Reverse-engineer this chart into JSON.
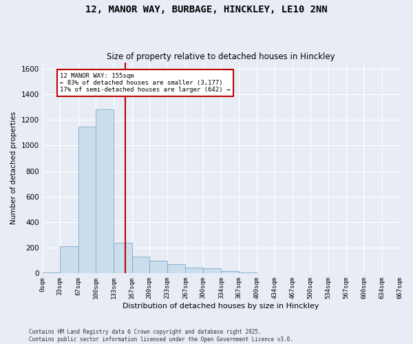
{
  "title": "12, MANOR WAY, BURBAGE, HINCKLEY, LE10 2NN",
  "subtitle": "Size of property relative to detached houses in Hinckley",
  "xlabel": "Distribution of detached houses by size in Hinckley",
  "ylabel": "Number of detached properties",
  "bar_color": "#ccdded",
  "bar_edge_color": "#7aaac8",
  "background_color": "#e8ecf4",
  "grid_color": "#ffffff",
  "annotation_box_color": "#bb0000",
  "property_line_color": "#bb0000",
  "property_value": 155,
  "annotation_title": "12 MANOR WAY: 155sqm",
  "annotation_line1": "← 83% of detached houses are smaller (3,177)",
  "annotation_line2": "17% of semi-detached houses are larger (642) →",
  "footer_line1": "Contains HM Land Registry data © Crown copyright and database right 2025.",
  "footer_line2": "Contains public sector information licensed under the Open Government Licence v3.0.",
  "bin_edges": [
    0,
    33,
    67,
    100,
    133,
    167,
    200,
    233,
    267,
    300,
    334,
    367,
    400,
    434,
    467,
    500,
    534,
    567,
    600,
    634,
    667
  ],
  "bin_labels": [
    "0sqm",
    "33sqm",
    "67sqm",
    "100sqm",
    "133sqm",
    "167sqm",
    "200sqm",
    "233sqm",
    "267sqm",
    "300sqm",
    "334sqm",
    "367sqm",
    "400sqm",
    "434sqm",
    "467sqm",
    "500sqm",
    "534sqm",
    "567sqm",
    "600sqm",
    "634sqm",
    "667sqm"
  ],
  "bar_heights": [
    5,
    210,
    1150,
    1280,
    240,
    130,
    100,
    70,
    45,
    40,
    20,
    5,
    3,
    2,
    1,
    0,
    0,
    0,
    0,
    0
  ],
  "ylim": [
    0,
    1650
  ],
  "yticks": [
    0,
    200,
    400,
    600,
    800,
    1000,
    1200,
    1400,
    1600
  ]
}
